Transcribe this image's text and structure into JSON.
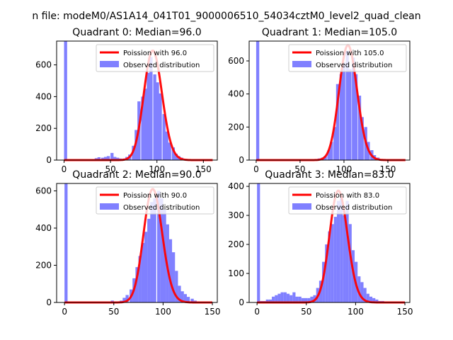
{
  "figure": {
    "suptitle": "n file: modeM0/AS1A14_041T01_9000006510_54034cztM0_level2_quad_clean"
  },
  "colors": {
    "hist_fill": "#8080ff",
    "fit_line": "#ff0000",
    "background": "#ffffff"
  },
  "chart_data": [
    {
      "type": "bar",
      "title": "Quadrant 0: Median=96.0",
      "xlabel": "",
      "ylabel": "",
      "xlim": [
        -8,
        165
      ],
      "ylim": [
        0,
        750
      ],
      "xticks": [
        0,
        50,
        100,
        150
      ],
      "yticks": [
        0,
        200,
        400,
        600
      ],
      "median": 96.0,
      "legend": {
        "position": "top-right",
        "line_label": "Poission with 96.0",
        "bar_label": "Observed distribution"
      },
      "bin_width": 3.3,
      "bins": [
        0,
        3,
        7,
        10,
        13,
        17,
        20,
        23,
        26,
        30,
        33,
        36,
        40,
        43,
        46,
        50,
        53,
        56,
        59,
        63,
        66,
        69,
        73,
        76,
        79,
        83,
        86,
        89,
        92,
        96,
        99,
        102,
        106,
        109,
        112,
        116,
        119,
        122,
        125,
        129,
        132,
        135,
        139,
        142,
        145,
        149,
        152,
        155,
        158
      ],
      "counts": [
        750,
        0,
        0,
        0,
        0,
        0,
        0,
        0,
        2,
        5,
        12,
        18,
        15,
        20,
        25,
        45,
        20,
        15,
        10,
        10,
        20,
        35,
        90,
        190,
        370,
        400,
        450,
        550,
        650,
        540,
        490,
        420,
        290,
        180,
        110,
        80,
        40,
        25,
        15,
        5,
        0,
        0,
        0,
        0,
        0,
        0,
        0,
        0,
        0
      ],
      "fit": {
        "lambda": 96.0,
        "scale": 690
      }
    },
    {
      "type": "bar",
      "title": "Quadrant 1: Median=105.0",
      "xlabel": "",
      "ylabel": "",
      "xlim": [
        -8,
        175
      ],
      "ylim": [
        0,
        720
      ],
      "xticks": [
        0,
        50,
        100,
        150
      ],
      "yticks": [
        0,
        200,
        400,
        600
      ],
      "median": 105.0,
      "legend": {
        "position": "top-right",
        "line_label": "Poission with 105.0",
        "bar_label": "Observed distribution"
      },
      "bin_width": 3.5,
      "bins": [
        0,
        4,
        7,
        11,
        14,
        18,
        21,
        25,
        28,
        32,
        35,
        39,
        42,
        46,
        49,
        53,
        56,
        60,
        63,
        67,
        70,
        74,
        77,
        81,
        84,
        88,
        91,
        95,
        98,
        102,
        105,
        109,
        112,
        116,
        119,
        123,
        126,
        130,
        133,
        137,
        140,
        144,
        147,
        151,
        154,
        158,
        161,
        165,
        168
      ],
      "counts": [
        720,
        0,
        0,
        0,
        0,
        0,
        0,
        0,
        0,
        0,
        0,
        0,
        0,
        0,
        0,
        0,
        0,
        0,
        2,
        5,
        10,
        15,
        25,
        60,
        110,
        200,
        460,
        520,
        590,
        660,
        550,
        620,
        520,
        390,
        260,
        200,
        110,
        60,
        30,
        15,
        5,
        0,
        0,
        0,
        0,
        0,
        0,
        0,
        0
      ],
      "fit": {
        "lambda": 105.0,
        "scale": 695
      }
    },
    {
      "type": "bar",
      "title": "Quadrant 2: Median=90.0",
      "xlabel": "",
      "ylabel": "",
      "xlim": [
        -8,
        155
      ],
      "ylim": [
        0,
        640
      ],
      "xticks": [
        0,
        50,
        100,
        150
      ],
      "yticks": [
        0,
        200,
        400,
        600
      ],
      "median": 90.0,
      "legend": {
        "position": "top-right",
        "line_label": "Poission with 90.0",
        "bar_label": "Observed distribution"
      },
      "bin_width": 3.1,
      "bins": [
        0,
        3,
        6,
        9,
        12,
        16,
        19,
        22,
        25,
        28,
        31,
        34,
        37,
        41,
        44,
        47,
        50,
        53,
        56,
        59,
        62,
        66,
        69,
        72,
        75,
        78,
        81,
        84,
        87,
        90,
        94,
        97,
        100,
        103,
        106,
        109,
        112,
        115,
        118,
        121,
        124,
        128,
        131,
        134,
        137,
        140,
        143,
        146
      ],
      "counts": [
        640,
        0,
        0,
        0,
        0,
        0,
        0,
        0,
        0,
        0,
        0,
        0,
        0,
        0,
        0,
        10,
        5,
        5,
        10,
        25,
        40,
        70,
        130,
        190,
        250,
        320,
        380,
        450,
        540,
        560,
        600,
        560,
        500,
        420,
        340,
        270,
        170,
        90,
        60,
        45,
        30,
        20,
        10,
        5,
        0,
        0,
        0,
        0
      ],
      "fit": {
        "lambda": 90.0,
        "scale": 610
      }
    },
    {
      "type": "bar",
      "title": "Quadrant 3: Median=83.0",
      "xlabel": "",
      "ylabel": "",
      "xlim": [
        -8,
        155
      ],
      "ylim": [
        0,
        410
      ],
      "xticks": [
        0,
        50,
        100,
        150
      ],
      "yticks": [
        0,
        100,
        200,
        300,
        400
      ],
      "median": 83.0,
      "legend": {
        "position": "top-right",
        "line_label": "Poission with 83.0",
        "bar_label": "Observed distribution"
      },
      "bin_width": 3.0,
      "bins": [
        0,
        3,
        6,
        9,
        12,
        15,
        18,
        21,
        24,
        27,
        30,
        33,
        36,
        39,
        42,
        45,
        48,
        51,
        54,
        57,
        60,
        63,
        66,
        69,
        72,
        75,
        78,
        81,
        84,
        87,
        90,
        93,
        96,
        99,
        102,
        105,
        108,
        111,
        114,
        117,
        120,
        123,
        126,
        129,
        132,
        135,
        138,
        141
      ],
      "counts": [
        410,
        5,
        5,
        10,
        10,
        20,
        25,
        30,
        35,
        35,
        30,
        25,
        35,
        20,
        20,
        15,
        15,
        15,
        20,
        25,
        50,
        75,
        140,
        200,
        245,
        270,
        295,
        350,
        360,
        300,
        350,
        270,
        180,
        140,
        90,
        70,
        50,
        30,
        20,
        15,
        10,
        5,
        5,
        0,
        0,
        0,
        0,
        0
      ],
      "fit": {
        "lambda": 83.0,
        "scale": 385
      }
    }
  ]
}
